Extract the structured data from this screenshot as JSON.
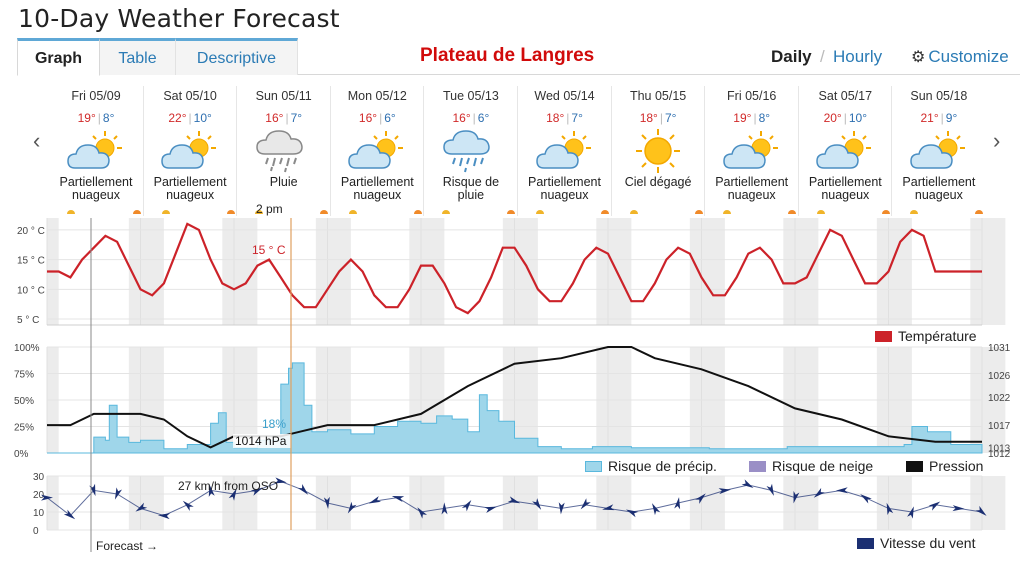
{
  "page": {
    "title": "10-Day Weather Forecast",
    "location": "Plateau de Langres"
  },
  "tabs": [
    "Graph",
    "Table",
    "Descriptive"
  ],
  "modes": {
    "daily": "Daily",
    "sep": "/",
    "hourly": "Hourly",
    "customize": "Customize"
  },
  "nav": {
    "prev": "‹",
    "next": "›"
  },
  "days": [
    {
      "label": "Fri 05/09",
      "hi": "19°",
      "lo": "8°",
      "icon": "partly-cloudy-icon",
      "cond": [
        "Partiellement",
        "nuageux"
      ]
    },
    {
      "label": "Sat 05/10",
      "hi": "22°",
      "lo": "10°",
      "icon": "partly-cloudy-icon",
      "cond": [
        "Partiellement",
        "nuageux"
      ]
    },
    {
      "label": "Sun 05/11",
      "hi": "16°",
      "lo": "7°",
      "icon": "rain-icon",
      "cond": [
        "Pluie",
        ""
      ]
    },
    {
      "label": "Mon 05/12",
      "hi": "16°",
      "lo": "6°",
      "icon": "partly-cloudy-icon",
      "cond": [
        "Partiellement",
        "nuageux"
      ]
    },
    {
      "label": "Tue 05/13",
      "hi": "16°",
      "lo": "6°",
      "icon": "chance-rain-icon",
      "cond": [
        "Risque de",
        "pluie"
      ]
    },
    {
      "label": "Wed 05/14",
      "hi": "18°",
      "lo": "7°",
      "icon": "partly-cloudy-icon",
      "cond": [
        "Partiellement",
        "nuageux"
      ]
    },
    {
      "label": "Thu 05/15",
      "hi": "18°",
      "lo": "7°",
      "icon": "sunny-icon",
      "cond": [
        "Ciel dégagé",
        ""
      ]
    },
    {
      "label": "Fri 05/16",
      "hi": "19°",
      "lo": "8°",
      "icon": "partly-cloudy-icon",
      "cond": [
        "Partiellement",
        "nuageux"
      ]
    },
    {
      "label": "Sat 05/17",
      "hi": "20°",
      "lo": "10°",
      "icon": "partly-cloudy-icon",
      "cond": [
        "Partiellement",
        "nuageux"
      ]
    },
    {
      "label": "Sun 05/18",
      "hi": "21°",
      "lo": "9°",
      "icon": "partly-cloudy-icon",
      "cond": [
        "Partiellement",
        "nuageux"
      ]
    }
  ],
  "colors": {
    "temperature": "#cc2229",
    "precip_fill": "#9fd6ea",
    "precip_line": "#5ab8dd",
    "pressure": "#111111",
    "wind": "#1b2f72",
    "snow": "#9a8fc6",
    "grid": "#e4e4e4",
    "night": "#ececec",
    "accent": "#2b7bb5"
  },
  "chart_data": [
    {
      "type": "line",
      "series_name": "Température",
      "ylim": [
        4,
        22
      ],
      "y_ticks": [
        "20 ° C",
        "15 ° C",
        "10 ° C",
        "5 ° C"
      ],
      "y_tick_values": [
        20,
        15,
        10,
        5
      ],
      "x": [
        0,
        3,
        6,
        9,
        12,
        15,
        18,
        21,
        24,
        27,
        30,
        33,
        36,
        39,
        42,
        45,
        48,
        51,
        54,
        57,
        60,
        63,
        66,
        69,
        72,
        75,
        78,
        81,
        84,
        87,
        90,
        93,
        96,
        99,
        102,
        105,
        108,
        111,
        114,
        117,
        120,
        123,
        126,
        129,
        132,
        135,
        138,
        141,
        144,
        147,
        150,
        153,
        156,
        159,
        162,
        165,
        168,
        171,
        174,
        177,
        180,
        183,
        186,
        189,
        192,
        195,
        198,
        201,
        204,
        207,
        210,
        213,
        216,
        219,
        222,
        225,
        228,
        231,
        234,
        237,
        240
      ],
      "values": [
        13,
        13,
        12,
        15,
        17,
        19,
        18,
        14,
        10,
        9,
        11,
        16,
        21,
        20,
        15,
        11,
        10,
        11,
        14,
        15,
        12,
        9,
        7,
        7,
        10,
        13,
        15,
        13,
        9,
        7,
        7,
        10,
        14,
        14,
        11,
        7,
        6,
        8,
        12,
        17,
        17,
        14,
        10,
        8,
        8,
        11,
        15,
        17,
        16,
        12,
        8,
        8,
        11,
        15,
        17,
        16,
        12,
        9,
        9,
        12,
        16,
        17,
        15,
        11,
        11,
        12,
        16,
        20,
        19,
        15,
        11,
        11,
        13,
        18,
        20,
        19,
        13,
        13,
        13,
        13,
        13
      ],
      "annotations": [
        {
          "text": "15 ° C"
        },
        {
          "text": "2 pm"
        }
      ]
    },
    {
      "type": "area",
      "series_name": "Risque de précip.",
      "ylim": [
        0,
        100
      ],
      "y_ticks": [
        "100%",
        "75%",
        "50%",
        "25%",
        "0%"
      ],
      "x": [
        0,
        6,
        12,
        15,
        16,
        18,
        21,
        24,
        30,
        36,
        42,
        44,
        46,
        48,
        54,
        60,
        62,
        63,
        66,
        68,
        72,
        78,
        84,
        90,
        96,
        100,
        104,
        108,
        111,
        113,
        116,
        120,
        126,
        132,
        140,
        150,
        170,
        190,
        210,
        220,
        222,
        226,
        232,
        240
      ],
      "values": [
        0,
        0,
        15,
        12,
        45,
        15,
        10,
        12,
        4,
        8,
        28,
        38,
        10,
        5,
        12,
        65,
        80,
        85,
        45,
        20,
        22,
        18,
        25,
        30,
        28,
        35,
        32,
        20,
        55,
        40,
        30,
        14,
        6,
        4,
        6,
        5,
        4,
        6,
        6,
        8,
        25,
        20,
        8,
        4
      ],
      "annotations": [
        {
          "text": "18%"
        }
      ]
    },
    {
      "type": "line",
      "series_name": "Pression",
      "ylim": [
        1012,
        1031
      ],
      "y_ticks": [
        "1031",
        "1026",
        "1022",
        "1017",
        "1013",
        "1012"
      ],
      "x": [
        0,
        6,
        12,
        24,
        30,
        36,
        42,
        48,
        54,
        60,
        66,
        72,
        84,
        96,
        108,
        120,
        132,
        144,
        150,
        156,
        168,
        180,
        192,
        204,
        216,
        228,
        236,
        240
      ],
      "values": [
        1017,
        1017,
        1019,
        1019,
        1018,
        1015,
        1013,
        1015,
        1015,
        1015,
        1016,
        1017,
        1017,
        1019,
        1024,
        1028,
        1029,
        1031,
        1031,
        1029,
        1027,
        1024,
        1020,
        1018,
        1015,
        1014,
        1014,
        1014
      ],
      "annotations": [
        {
          "text": "1014 hPa"
        }
      ]
    },
    {
      "type": "line",
      "series_name": "Vitesse du vent",
      "ylim": [
        0,
        30
      ],
      "y_ticks": [
        "30",
        "20",
        "10",
        "0"
      ],
      "x": [
        0,
        6,
        12,
        18,
        24,
        30,
        36,
        42,
        48,
        54,
        60,
        66,
        72,
        78,
        84,
        90,
        96,
        102,
        108,
        114,
        120,
        126,
        132,
        138,
        144,
        150,
        156,
        162,
        168,
        174,
        180,
        186,
        192,
        198,
        204,
        210,
        216,
        222,
        228,
        234,
        240
      ],
      "values": [
        18,
        8,
        22,
        20,
        12,
        8,
        14,
        22,
        20,
        22,
        27,
        22,
        15,
        12,
        16,
        18,
        10,
        12,
        14,
        12,
        16,
        14,
        12,
        14,
        12,
        10,
        12,
        15,
        18,
        22,
        25,
        22,
        18,
        20,
        22,
        18,
        12,
        10,
        14,
        12,
        10
      ],
      "annotations": [
        {
          "text": "27 km/h from OSO"
        },
        {
          "text": "Forecast →"
        }
      ]
    }
  ],
  "legend": {
    "temp": "Température",
    "precip": "Risque de précip.",
    "snow": "Risque de neige",
    "pressure": "Pression",
    "wind": "Vitesse du vent"
  }
}
